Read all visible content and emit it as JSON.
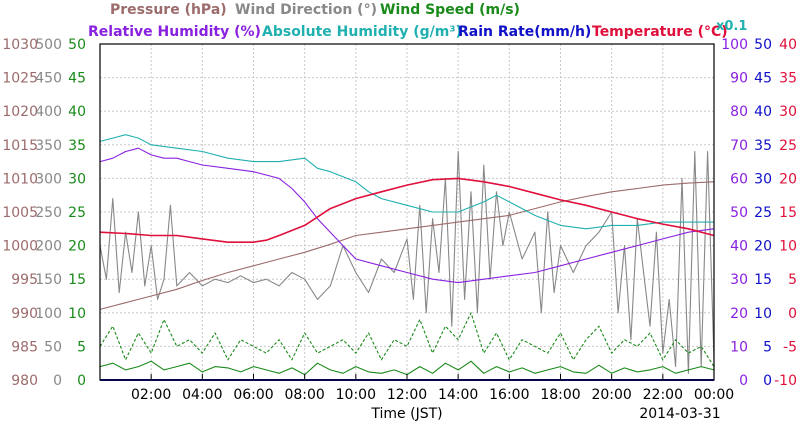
{
  "header": {
    "row1": [
      {
        "text": "Pressure (hPa)",
        "color": "#9c6b6b"
      },
      {
        "text": "Wind Direction (°)",
        "color": "#888888"
      },
      {
        "text": "Wind Speed (m/s)",
        "color": "#1a8a1a"
      }
    ],
    "row2": [
      {
        "text": "Relative Humidity (%)",
        "color": "#8a20e0"
      },
      {
        "text": "Absolute Humidity (g/m³)",
        "color": "#20b0b0"
      },
      {
        "text": "Rain Rate(mm/h)",
        "color": "#1010c8"
      },
      {
        "text": "Temperature (°C)",
        "color": "#e0103c"
      }
    ],
    "abs_factor": "x0.1"
  },
  "chart_data": {
    "type": "line",
    "xlabel": "Time (JST)",
    "date": "2014-03-31",
    "x_ticks": [
      "02:00",
      "04:00",
      "06:00",
      "08:00",
      "10:00",
      "12:00",
      "14:00",
      "16:00",
      "18:00",
      "20:00",
      "22:00",
      "00:00"
    ],
    "xlim": [
      "00:00",
      "24:00"
    ],
    "grid": true,
    "axes": {
      "pressure": {
        "color": "#9c6b6b",
        "ticks": [
          "1030",
          "1025",
          "1020",
          "1015",
          "1010",
          "1005",
          "1000",
          "995",
          "990",
          "985",
          "980"
        ],
        "ylim": [
          980,
          1030
        ]
      },
      "wind_dir": {
        "color": "#888888",
        "ticks": [
          "500",
          "450",
          "400",
          "350",
          "300",
          "250",
          "200",
          "150",
          "100",
          "50",
          "0"
        ],
        "ylim": [
          0,
          500
        ]
      },
      "wind_speed": {
        "color": "#1a8a1a",
        "ticks": [
          "50",
          "45",
          "40",
          "35",
          "30",
          "25",
          "20",
          "15",
          "10",
          "5",
          "0"
        ],
        "ylim": [
          0,
          50
        ]
      },
      "humidity": {
        "color": "#8a20e0",
        "ticks": [
          "100",
          "90",
          "80",
          "70",
          "60",
          "50",
          "40",
          "30",
          "20",
          "10",
          "0"
        ],
        "ylim": [
          0,
          100
        ]
      },
      "rain": {
        "color": "#1010c8",
        "ticks": [
          "50",
          "45",
          "40",
          "35",
          "30",
          "25",
          "20",
          "15",
          "10",
          "5",
          "0"
        ],
        "ylim": [
          0,
          50
        ]
      },
      "temperature": {
        "color": "#e0103c",
        "ticks": [
          "40",
          "35",
          "30",
          "25",
          "20",
          "15",
          "10",
          "5",
          "0",
          "-5",
          "-10"
        ],
        "ylim": [
          -10,
          40
        ]
      }
    },
    "series": [
      {
        "name": "Pressure",
        "axis": "pressure",
        "color": "#9c6b6b",
        "x": [
          0,
          1,
          2,
          3,
          4,
          5,
          6,
          7,
          8,
          9,
          10,
          11,
          12,
          13,
          14,
          15,
          16,
          17,
          18,
          19,
          20,
          21,
          22,
          23,
          24
        ],
        "y": [
          990.5,
          991.5,
          992.5,
          993.5,
          994.8,
          996.0,
          997.0,
          998.0,
          999.0,
          1000.2,
          1001.5,
          1002.0,
          1002.5,
          1003.0,
          1003.5,
          1004.0,
          1004.5,
          1005.5,
          1006.5,
          1007.3,
          1008.0,
          1008.5,
          1009.0,
          1009.3,
          1009.5
        ]
      },
      {
        "name": "Relative Humidity",
        "axis": "humidity",
        "color": "#8a20e0",
        "x": [
          0,
          0.5,
          1,
          1.5,
          2,
          2.5,
          3,
          3.5,
          4,
          5,
          6,
          7,
          7.5,
          8,
          8.5,
          9,
          9.5,
          10,
          11,
          12,
          13,
          14,
          15,
          16,
          17,
          18,
          19,
          20,
          21,
          22,
          23,
          24
        ],
        "y": [
          65,
          66,
          68,
          69,
          67,
          66,
          66,
          65,
          64,
          63,
          62,
          60,
          57,
          53,
          48,
          44,
          40,
          36,
          34,
          32,
          30,
          29,
          30,
          31,
          32,
          34,
          36,
          38,
          40,
          42,
          44,
          45
        ]
      },
      {
        "name": "Absolute Humidity",
        "axis": "humidity",
        "color": "#20b0b0",
        "x": [
          0,
          0.5,
          1,
          1.5,
          2,
          3,
          4,
          5,
          6,
          7,
          8,
          8.5,
          9,
          10,
          10.5,
          11,
          12,
          13,
          14,
          15,
          15.5,
          16,
          17,
          18,
          19,
          20,
          21,
          22,
          23,
          24
        ],
        "y": [
          71,
          72,
          73,
          72,
          70,
          69,
          68,
          66,
          65,
          65,
          66,
          63,
          62,
          59,
          56,
          54,
          52,
          50,
          50,
          53,
          55,
          53,
          49,
          46,
          45,
          46,
          46,
          47,
          47,
          47
        ]
      },
      {
        "name": "Temperature",
        "axis": "temperature",
        "color": "#e0103c",
        "x": [
          0,
          1,
          2,
          3,
          4,
          5,
          6,
          6.5,
          7,
          8,
          9,
          10,
          11,
          12,
          13,
          14,
          15,
          16,
          17,
          18,
          19,
          20,
          21,
          22,
          23,
          24
        ],
        "y": [
          12.0,
          11.8,
          11.5,
          11.5,
          11.0,
          10.5,
          10.5,
          10.8,
          11.5,
          13.0,
          15.5,
          17.0,
          18.0,
          19.0,
          19.8,
          20.0,
          19.5,
          18.8,
          17.8,
          16.8,
          16.0,
          15.0,
          14.0,
          13.2,
          12.5,
          11.5
        ]
      },
      {
        "name": "Wind Direction",
        "axis": "wind_dir",
        "color": "#888888",
        "x": [
          0,
          0.25,
          0.5,
          0.75,
          1,
          1.25,
          1.5,
          1.75,
          2,
          2.25,
          2.5,
          2.75,
          3,
          3.5,
          4,
          4.5,
          5,
          5.5,
          6,
          6.5,
          7,
          7.5,
          8,
          8.5,
          9,
          9.5,
          10,
          10.5,
          11,
          11.5,
          12,
          12.25,
          12.5,
          12.75,
          13,
          13.25,
          13.5,
          13.75,
          14,
          14.25,
          14.5,
          14.75,
          15,
          15.25,
          15.5,
          15.75,
          16,
          16.5,
          17,
          17.25,
          17.5,
          17.75,
          18,
          18.5,
          19,
          19.5,
          20,
          20.25,
          20.5,
          20.75,
          21,
          21.25,
          21.5,
          21.75,
          22,
          22.25,
          22.5,
          22.75,
          23,
          23.25,
          23.5,
          23.75,
          24
        ],
        "y": [
          200,
          150,
          270,
          130,
          220,
          160,
          250,
          140,
          200,
          120,
          150,
          260,
          140,
          160,
          140,
          150,
          145,
          155,
          145,
          150,
          140,
          160,
          150,
          120,
          140,
          200,
          160,
          130,
          180,
          160,
          210,
          120,
          260,
          100,
          240,
          160,
          300,
          80,
          340,
          120,
          280,
          100,
          320,
          150,
          280,
          200,
          250,
          180,
          220,
          100,
          250,
          130,
          200,
          160,
          200,
          220,
          250,
          100,
          200,
          60,
          240,
          160,
          80,
          220,
          40,
          120,
          20,
          300,
          10,
          340,
          20,
          340,
          30
        ]
      },
      {
        "name": "Wind Speed",
        "axis": "wind_speed",
        "color": "#1a8a1a",
        "x": [
          0,
          0.5,
          1,
          1.5,
          2,
          2.5,
          3,
          3.5,
          4,
          4.5,
          5,
          5.5,
          6,
          6.5,
          7,
          7.5,
          8,
          8.5,
          9,
          9.5,
          10,
          10.5,
          11,
          11.5,
          12,
          12.5,
          13,
          13.5,
          14,
          14.5,
          15,
          15.5,
          16,
          16.5,
          17,
          17.5,
          18,
          18.5,
          19,
          19.5,
          20,
          20.5,
          21,
          21.5,
          22,
          22.5,
          23,
          23.5,
          24
        ],
        "y": [
          2,
          2.5,
          1.5,
          2,
          2.8,
          1.5,
          2,
          2.5,
          1.2,
          2,
          1.8,
          1.2,
          2,
          1.5,
          1,
          1.8,
          0.8,
          2.5,
          1.5,
          1,
          2,
          1.2,
          1,
          1.5,
          0.8,
          2,
          1,
          2.5,
          1.5,
          2.8,
          1,
          2,
          1.2,
          1.8,
          1,
          1.5,
          2,
          1.2,
          1,
          2.2,
          1,
          1.8,
          1.2,
          1.5,
          2,
          1,
          1.5,
          2,
          1.5
        ]
      },
      {
        "name": "Max Wind Speed",
        "axis": "wind_speed",
        "color": "#1a8a1a",
        "dashed": true,
        "x": [
          0,
          0.5,
          1,
          1.5,
          2,
          2.5,
          3,
          3.5,
          4,
          4.5,
          5,
          5.5,
          6,
          6.5,
          7,
          7.5,
          8,
          8.5,
          9,
          9.5,
          10,
          10.5,
          11,
          11.5,
          12,
          12.5,
          13,
          13.5,
          14,
          14.5,
          15,
          15.5,
          16,
          16.5,
          17,
          17.5,
          18,
          18.5,
          19,
          19.5,
          20,
          20.5,
          21,
          21.5,
          22,
          22.5,
          23,
          23.5,
          24
        ],
        "y": [
          5,
          8,
          3,
          7,
          4,
          9,
          5,
          6,
          4,
          7,
          3,
          6,
          5,
          4,
          6,
          3,
          7,
          4,
          5,
          6,
          4,
          7,
          3,
          6,
          5,
          9,
          4,
          8,
          6,
          10,
          4,
          7,
          3,
          6,
          5,
          4,
          7,
          3,
          6,
          8,
          4,
          6,
          5,
          7,
          3,
          6,
          4,
          5,
          2
        ]
      },
      {
        "name": "Rain Rate",
        "axis": "rain",
        "color": "#1010c8",
        "x": [
          0,
          24
        ],
        "y": [
          0,
          0
        ]
      }
    ]
  }
}
